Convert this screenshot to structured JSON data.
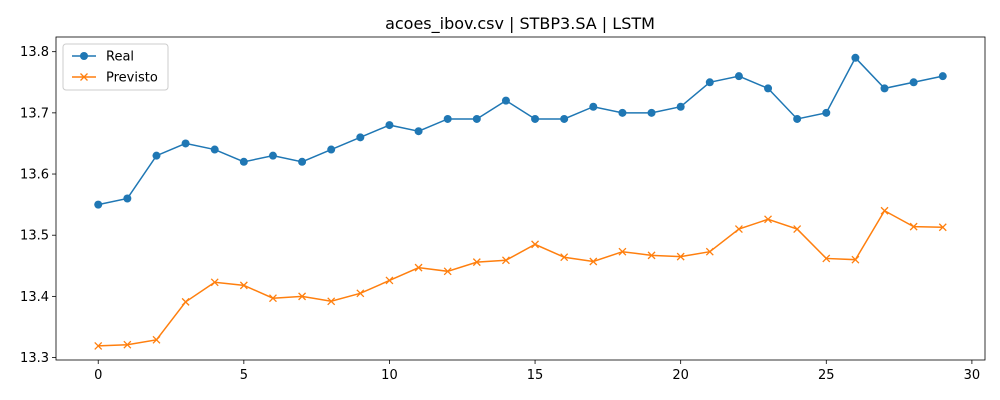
{
  "chart_data": {
    "type": "line",
    "title": "acoes_ibov.csv | STBP3.SA | LSTM",
    "xlabel": "",
    "ylabel": "",
    "xlim": [
      -1.45,
      30.45
    ],
    "ylim": [
      13.296,
      13.824
    ],
    "x_ticks": [
      0,
      5,
      10,
      15,
      20,
      25,
      30
    ],
    "y_ticks": [
      13.3,
      13.4,
      13.5,
      13.6,
      13.7,
      13.8
    ],
    "grid": false,
    "legend_position": "top-left",
    "x": [
      0,
      1,
      2,
      3,
      4,
      5,
      6,
      7,
      8,
      9,
      10,
      11,
      12,
      13,
      14,
      15,
      16,
      17,
      18,
      19,
      20,
      21,
      22,
      23,
      24,
      25,
      26,
      27,
      28,
      29
    ],
    "series": [
      {
        "name": "Real",
        "color": "#1f77b4",
        "marker": "circle",
        "values": [
          13.55,
          13.56,
          13.63,
          13.65,
          13.64,
          13.62,
          13.63,
          13.62,
          13.64,
          13.66,
          13.68,
          13.67,
          13.69,
          13.69,
          13.72,
          13.69,
          13.69,
          13.71,
          13.7,
          13.7,
          13.71,
          13.75,
          13.76,
          13.74,
          13.69,
          13.7,
          13.79,
          13.74,
          13.75,
          13.76
        ]
      },
      {
        "name": "Previsto",
        "color": "#ff7f0e",
        "marker": "x",
        "values": [
          13.319,
          13.321,
          13.329,
          13.391,
          13.423,
          13.418,
          13.397,
          13.4,
          13.392,
          13.405,
          13.426,
          13.447,
          13.441,
          13.456,
          13.459,
          13.485,
          13.464,
          13.457,
          13.473,
          13.467,
          13.465,
          13.473,
          13.51,
          13.526,
          13.51,
          13.462,
          13.46,
          13.54,
          13.514,
          13.513
        ]
      }
    ]
  }
}
